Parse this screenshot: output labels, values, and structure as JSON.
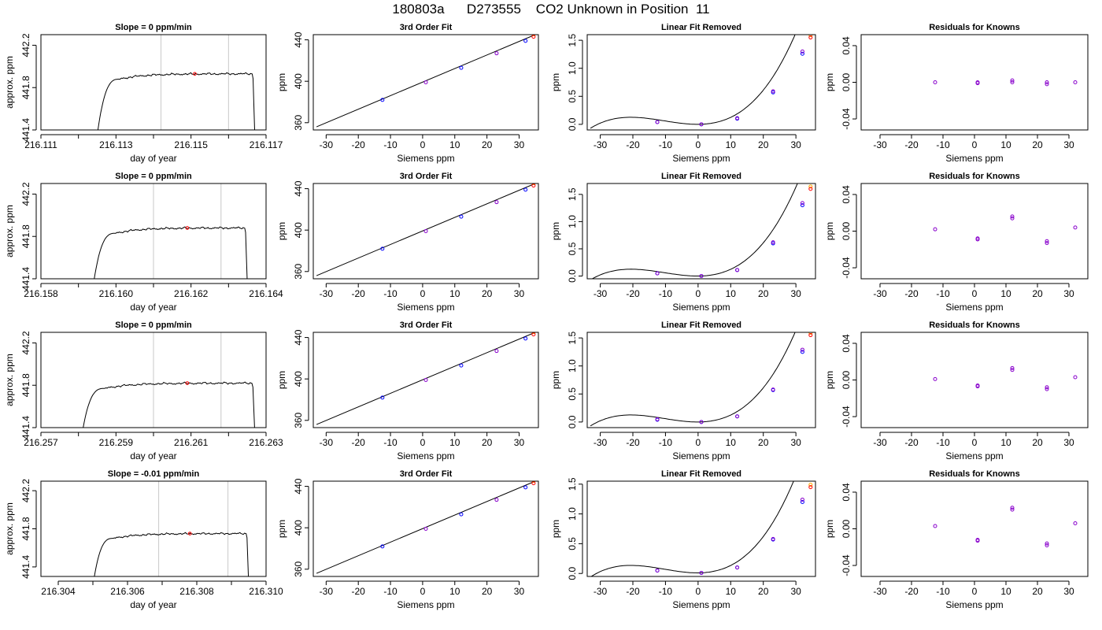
{
  "figure": {
    "title": "180803a      D273555    CO2 Unknown in Position  11"
  },
  "chart_data": [
    {
      "type": "line",
      "row": 0,
      "col": 0,
      "title": "Slope =  0  ppm/min",
      "xlabel": "day of year",
      "ylabel": "approx. ppm",
      "xlim": [
        216.111,
        216.117
      ],
      "ylim": [
        441.4,
        442.3
      ],
      "xticks": [
        "216.111",
        "216.113",
        "216.115",
        "216.117"
      ],
      "xtickvals": [
        216.111,
        216.113,
        216.115,
        216.117
      ],
      "yticks": [
        "441.4",
        "441.8",
        "442.2"
      ],
      "ytickvals": [
        441.4,
        441.8,
        442.2
      ],
      "vlines": [
        216.1142,
        216.116
      ],
      "trace": {
        "x0": 216.1125,
        "x1": 216.1167,
        "rise_end": 216.1131,
        "plateau": 441.93,
        "start": 441.35,
        "end": 441.35
      },
      "highlight": {
        "x": 216.1151,
        "y": 441.93
      }
    },
    {
      "type": "scatter",
      "row": 0,
      "col": 1,
      "title": "3rd Order Fit",
      "xlabel": "Siemens ppm",
      "ylabel": "ppm",
      "xlim": [
        -34,
        36
      ],
      "ylim": [
        353,
        445
      ],
      "xticks": [
        "-30",
        "-20",
        "-10",
        "0",
        "10",
        "20",
        "30"
      ],
      "xtickvals": [
        -30,
        -20,
        -10,
        0,
        10,
        20,
        30
      ],
      "yticks": [
        "360",
        "400",
        "440"
      ],
      "ytickvals": [
        360,
        400,
        440
      ],
      "line": {
        "x": [
          -33,
          35
        ],
        "y": [
          356,
          445
        ]
      },
      "points": {
        "x": [
          -12.5,
          1,
          12,
          23,
          32
        ],
        "y": [
          382,
          399,
          413,
          427,
          439
        ]
      },
      "unknown": {
        "x": 34.5,
        "y": 443
      }
    },
    {
      "type": "scatter",
      "row": 0,
      "col": 2,
      "title": "Linear Fit Removed",
      "xlabel": "Siemens ppm",
      "ylabel": "ppm",
      "xlim": [
        -34,
        36
      ],
      "ylim": [
        -0.1,
        1.6
      ],
      "xticks": [
        "-30",
        "-20",
        "-10",
        "0",
        "10",
        "20",
        "30"
      ],
      "xtickvals": [
        -30,
        -20,
        -10,
        0,
        10,
        20,
        30
      ],
      "yticks": [
        "0.0",
        "0.5",
        "1.0",
        "1.5"
      ],
      "ytickvals": [
        0,
        0.5,
        1,
        1.5
      ],
      "points": {
        "x": [
          -12.5,
          -12.5,
          1,
          1,
          12,
          12,
          23,
          23,
          32,
          32
        ],
        "y": [
          0.04,
          0.04,
          0,
          0,
          0.1,
          0.11,
          0.57,
          0.59,
          1.26,
          1.3
        ]
      },
      "unknown": {
        "x": 34.5,
        "y": 1.55
      }
    },
    {
      "type": "scatter",
      "row": 0,
      "col": 3,
      "title": "Residuals for Knowns",
      "xlabel": "Siemens ppm",
      "ylabel": "ppm",
      "xlim": [
        -36,
        36
      ],
      "ylim": [
        -0.052,
        0.052
      ],
      "xticks": [
        "-30",
        "-20",
        "-10",
        "0",
        "10",
        "20",
        "30"
      ],
      "xtickvals": [
        -30,
        -20,
        -10,
        0,
        10,
        20,
        30
      ],
      "yticks": [
        "-0.04",
        "0.00",
        "0.04"
      ],
      "ytickvals": [
        -0.04,
        0,
        0.04
      ],
      "points": {
        "x": [
          -12.5,
          1,
          1,
          12,
          12,
          23,
          23,
          32
        ],
        "y": [
          0,
          0,
          -0.001,
          0.002,
          0,
          0,
          -0.002,
          0
        ]
      }
    },
    {
      "type": "line",
      "row": 1,
      "col": 0,
      "title": "Slope =  0  ppm/min",
      "xlabel": "day of year",
      "ylabel": "approx. ppm",
      "xlim": [
        216.158,
        216.164
      ],
      "ylim": [
        441.4,
        442.3
      ],
      "xticks": [
        "216.158",
        "216.160",
        "216.162",
        "216.164"
      ],
      "xtickvals": [
        216.158,
        216.16,
        216.162,
        216.164
      ],
      "yticks": [
        "441.4",
        "441.8",
        "442.2"
      ],
      "ytickvals": [
        441.4,
        441.8,
        442.2
      ],
      "vlines": [
        216.161,
        216.1628
      ],
      "trace": {
        "x0": 216.1594,
        "x1": 216.1635,
        "rise_end": 216.16,
        "plateau": 441.88,
        "start": 441.35,
        "end": 441.35
      },
      "highlight": {
        "x": 216.1619,
        "y": 441.88
      }
    },
    {
      "type": "scatter",
      "row": 1,
      "col": 1,
      "title": "3rd Order Fit",
      "xlabel": "Siemens ppm",
      "ylabel": "ppm",
      "xlim": [
        -34,
        36
      ],
      "ylim": [
        353,
        445
      ],
      "xticks": [
        "-30",
        "-20",
        "-10",
        "0",
        "10",
        "20",
        "30"
      ],
      "xtickvals": [
        -30,
        -20,
        -10,
        0,
        10,
        20,
        30
      ],
      "yticks": [
        "360",
        "400",
        "440"
      ],
      "ytickvals": [
        360,
        400,
        440
      ],
      "line": {
        "x": [
          -33,
          35
        ],
        "y": [
          356,
          445
        ]
      },
      "points": {
        "x": [
          -12.5,
          1,
          12,
          23,
          32
        ],
        "y": [
          382,
          399,
          413,
          427,
          439
        ]
      },
      "unknown": {
        "x": 34.5,
        "y": 443
      }
    },
    {
      "type": "scatter",
      "row": 1,
      "col": 2,
      "title": "Linear Fit Removed",
      "xlabel": "Siemens ppm",
      "ylabel": "ppm",
      "xlim": [
        -34,
        36
      ],
      "ylim": [
        -0.05,
        1.7
      ],
      "xticks": [
        "-30",
        "-20",
        "-10",
        "0",
        "10",
        "20",
        "30"
      ],
      "xtickvals": [
        -30,
        -20,
        -10,
        0,
        10,
        20,
        30
      ],
      "yticks": [
        "0.0",
        "0.5",
        "1.0",
        "1.5"
      ],
      "ytickvals": [
        0,
        0.5,
        1,
        1.5
      ],
      "points": {
        "x": [
          -12.5,
          -12.5,
          1,
          1,
          12,
          12,
          23,
          23,
          32,
          32
        ],
        "y": [
          0.05,
          0.05,
          0,
          0,
          0.11,
          0.11,
          0.6,
          0.62,
          1.3,
          1.34
        ]
      },
      "unknown": {
        "x": 34.5,
        "y": 1.6
      }
    },
    {
      "type": "scatter",
      "row": 1,
      "col": 3,
      "title": "Residuals for Knowns",
      "xlabel": "Siemens ppm",
      "ylabel": "ppm",
      "xlim": [
        -36,
        36
      ],
      "ylim": [
        -0.052,
        0.052
      ],
      "xticks": [
        "-30",
        "-20",
        "-10",
        "0",
        "10",
        "20",
        "30"
      ],
      "xtickvals": [
        -30,
        -20,
        -10,
        0,
        10,
        20,
        30
      ],
      "yticks": [
        "-0.04",
        "0.00",
        "0.04"
      ],
      "ytickvals": [
        -0.04,
        0,
        0.04
      ],
      "points": {
        "x": [
          -12.5,
          1,
          1,
          12,
          12,
          23,
          23,
          32
        ],
        "y": [
          0.002,
          -0.008,
          -0.009,
          0.014,
          0.016,
          -0.011,
          -0.013,
          0.004
        ]
      }
    },
    {
      "type": "line",
      "row": 2,
      "col": 0,
      "title": "Slope =  0  ppm/min",
      "xlabel": "day of year",
      "ylabel": "approx. ppm",
      "xlim": [
        216.257,
        216.263
      ],
      "ylim": [
        441.4,
        442.3
      ],
      "xticks": [
        "216.257",
        "216.259",
        "216.261",
        "216.263"
      ],
      "xtickvals": [
        216.257,
        216.259,
        216.261,
        216.263
      ],
      "yticks": [
        "441.4",
        "441.8",
        "442.2"
      ],
      "ytickvals": [
        441.4,
        441.8,
        442.2
      ],
      "vlines": [
        216.26,
        216.2618
      ],
      "trace": {
        "x0": 216.2581,
        "x1": 216.2627,
        "rise_end": 216.2587,
        "plateau": 441.82,
        "start": 441.35,
        "end": 441.35
      },
      "highlight": {
        "x": 216.2609,
        "y": 441.82
      }
    },
    {
      "type": "scatter",
      "row": 2,
      "col": 1,
      "title": "3rd Order Fit",
      "xlabel": "Siemens ppm",
      "ylabel": "ppm",
      "xlim": [
        -34,
        36
      ],
      "ylim": [
        353,
        445
      ],
      "xticks": [
        "-30",
        "-20",
        "-10",
        "0",
        "10",
        "20",
        "30"
      ],
      "xtickvals": [
        -30,
        -20,
        -10,
        0,
        10,
        20,
        30
      ],
      "yticks": [
        "360",
        "400",
        "440"
      ],
      "ytickvals": [
        360,
        400,
        440
      ],
      "line": {
        "x": [
          -33,
          35
        ],
        "y": [
          356,
          445
        ]
      },
      "points": {
        "x": [
          -12.5,
          1,
          12,
          23,
          32
        ],
        "y": [
          382,
          399,
          413,
          427,
          439
        ]
      },
      "unknown": {
        "x": 34.5,
        "y": 443
      }
    },
    {
      "type": "scatter",
      "row": 2,
      "col": 2,
      "title": "Linear Fit Removed",
      "xlabel": "Siemens ppm",
      "ylabel": "ppm",
      "xlim": [
        -34,
        36
      ],
      "ylim": [
        -0.1,
        1.6
      ],
      "xticks": [
        "-30",
        "-20",
        "-10",
        "0",
        "10",
        "20",
        "30"
      ],
      "xtickvals": [
        -30,
        -20,
        -10,
        0,
        10,
        20,
        30
      ],
      "yticks": [
        "0.0",
        "0.5",
        "1.0",
        "1.5"
      ],
      "ytickvals": [
        0,
        0.5,
        1,
        1.5
      ],
      "points": {
        "x": [
          -12.5,
          -12.5,
          1,
          1,
          12,
          12,
          23,
          23,
          32,
          32
        ],
        "y": [
          0.04,
          0.05,
          0,
          0,
          0.1,
          0.1,
          0.57,
          0.58,
          1.25,
          1.29
        ]
      },
      "unknown": {
        "x": 34.5,
        "y": 1.55
      }
    },
    {
      "type": "scatter",
      "row": 2,
      "col": 3,
      "title": "Residuals for Knowns",
      "xlabel": "Siemens ppm",
      "ylabel": "ppm",
      "xlim": [
        -36,
        36
      ],
      "ylim": [
        -0.052,
        0.052
      ],
      "xticks": [
        "-30",
        "-20",
        "-10",
        "0",
        "10",
        "20",
        "30"
      ],
      "xtickvals": [
        -30,
        -20,
        -10,
        0,
        10,
        20,
        30
      ],
      "yticks": [
        "-0.04",
        "0.00",
        "0.04"
      ],
      "ytickvals": [
        -0.04,
        0,
        0.04
      ],
      "points": {
        "x": [
          -12.5,
          1,
          1,
          12,
          12,
          23,
          23,
          32
        ],
        "y": [
          0.001,
          -0.006,
          -0.007,
          0.011,
          0.013,
          -0.008,
          -0.01,
          0.003
        ]
      }
    },
    {
      "type": "line",
      "row": 3,
      "col": 0,
      "title": "Slope =  -0.01  ppm/min",
      "xlabel": "day of year",
      "ylabel": "approx. ppm",
      "xlim": [
        216.3035,
        216.31
      ],
      "ylim": [
        441.3,
        442.3
      ],
      "xticks": [
        "216.304",
        "216.306",
        "216.308",
        "216.310"
      ],
      "xtickvals": [
        216.304,
        216.306,
        216.308,
        216.31
      ],
      "yticks": [
        "441.4",
        "441.8",
        "442.2"
      ],
      "ytickvals": [
        441.4,
        441.8,
        442.2
      ],
      "vlines": [
        216.3069,
        216.3089
      ],
      "trace": {
        "x0": 216.305,
        "x1": 216.3095,
        "rise_end": 216.3056,
        "plateau": 441.75,
        "start": 441.2,
        "end": 441.2
      },
      "highlight": {
        "x": 216.3078,
        "y": 441.75
      }
    },
    {
      "type": "scatter",
      "row": 3,
      "col": 1,
      "title": "3rd Order Fit",
      "xlabel": "Siemens ppm",
      "ylabel": "ppm",
      "xlim": [
        -34,
        36
      ],
      "ylim": [
        353,
        445
      ],
      "xticks": [
        "-30",
        "-20",
        "-10",
        "0",
        "10",
        "20",
        "30"
      ],
      "xtickvals": [
        -30,
        -20,
        -10,
        0,
        10,
        20,
        30
      ],
      "yticks": [
        "360",
        "400",
        "440"
      ],
      "ytickvals": [
        360,
        400,
        440
      ],
      "line": {
        "x": [
          -33,
          35
        ],
        "y": [
          356,
          445
        ]
      },
      "points": {
        "x": [
          -12.5,
          1,
          12,
          23,
          32
        ],
        "y": [
          382,
          399,
          413,
          427,
          439
        ]
      },
      "unknown": {
        "x": 34.5,
        "y": 443
      }
    },
    {
      "type": "scatter",
      "row": 3,
      "col": 2,
      "title": "Linear Fit Removed",
      "xlabel": "Siemens ppm",
      "ylabel": "ppm",
      "xlim": [
        -34,
        36
      ],
      "ylim": [
        -0.05,
        1.55
      ],
      "xticks": [
        "-30",
        "-20",
        "-10",
        "0",
        "10",
        "20",
        "30"
      ],
      "xtickvals": [
        -30,
        -20,
        -10,
        0,
        10,
        20,
        30
      ],
      "yticks": [
        "0.0",
        "0.5",
        "1.0",
        "1.5"
      ],
      "ytickvals": [
        0,
        0.5,
        1,
        1.5
      ],
      "points": {
        "x": [
          -12.5,
          -12.5,
          1,
          1,
          12,
          12,
          23,
          23,
          32,
          32
        ],
        "y": [
          0.05,
          0.05,
          0.01,
          0.01,
          0.1,
          0.1,
          0.57,
          0.58,
          1.2,
          1.24
        ]
      },
      "unknown": {
        "x": 34.5,
        "y": 1.45
      }
    },
    {
      "type": "scatter",
      "row": 3,
      "col": 3,
      "title": "Residuals for Knowns",
      "xlabel": "Siemens ppm",
      "ylabel": "ppm",
      "xlim": [
        -36,
        36
      ],
      "ylim": [
        -0.052,
        0.052
      ],
      "xticks": [
        "-30",
        "-20",
        "-10",
        "0",
        "10",
        "20",
        "30"
      ],
      "xtickvals": [
        -30,
        -20,
        -10,
        0,
        10,
        20,
        30
      ],
      "yticks": [
        "-0.04",
        "0.00",
        "0.04"
      ],
      "ytickvals": [
        -0.04,
        0,
        0.04
      ],
      "points": {
        "x": [
          -12.5,
          1,
          1,
          12,
          12,
          23,
          23,
          32
        ],
        "y": [
          0.003,
          -0.012,
          -0.013,
          0.021,
          0.023,
          -0.016,
          -0.018,
          0.006
        ]
      }
    }
  ],
  "colors": {
    "axis": "#000000",
    "trace": "#000000",
    "vline": "#c8c8c8",
    "highlight": "#ff0000",
    "points": "#0000ff",
    "points_alt": "#8800cc",
    "unknown": "#ff0000",
    "unknown_alt": "#ffaa00"
  }
}
